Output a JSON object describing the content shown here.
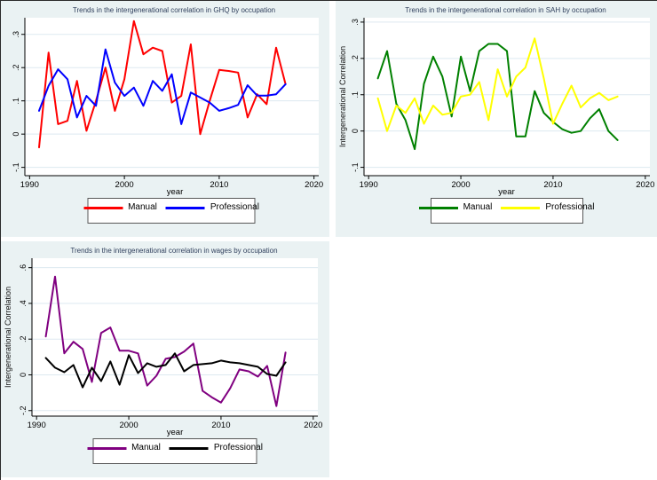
{
  "page": {
    "background": "#ffffff",
    "panel_background": "#eaf2f3",
    "gridline_color": "#dde9f0",
    "axis_color": "#000000",
    "title_color": "#2f3f5c"
  },
  "chart_data": [
    {
      "type": "line",
      "title": "Trends in the intergenerational correlation in GHQ by occupation",
      "xlabel": "year",
      "ylabel": "",
      "grid": true,
      "legend_position": "bottom",
      "xlim": [
        1989.5,
        2020.5
      ],
      "ylim": [
        -0.125,
        0.35
      ],
      "xticks": {
        "values": [
          1990,
          2000,
          2010,
          2020
        ],
        "labels": [
          "1990",
          "2000",
          "2010",
          "2020"
        ]
      },
      "yticks": {
        "values": [
          -0.1,
          0,
          0.1,
          0.2,
          0.3
        ],
        "labels": [
          "-.1",
          "0",
          ".1",
          ".2",
          ".3"
        ]
      },
      "x": [
        1991,
        1992,
        1993,
        1994,
        1995,
        1996,
        1997,
        1998,
        1999,
        2000,
        2001,
        2002,
        2003,
        2004,
        2005,
        2006,
        2007,
        2008,
        2009,
        2010,
        2011,
        2012,
        2013,
        2014,
        2015,
        2016,
        2017
      ],
      "series": [
        {
          "name": "Manual",
          "color": "#ff0000",
          "values": [
            -0.04,
            0.245,
            0.03,
            0.04,
            0.16,
            0.01,
            0.1,
            0.2,
            0.07,
            0.165,
            0.34,
            0.24,
            0.26,
            0.25,
            0.095,
            0.115,
            0.27,
            0.0,
            0.1,
            0.193,
            0.19,
            0.185,
            0.05,
            0.12,
            0.09,
            0.26,
            0.15
          ]
        },
        {
          "name": "Professional",
          "color": "#0000ff",
          "values": [
            0.07,
            0.145,
            0.195,
            0.165,
            0.05,
            0.115,
            0.085,
            0.255,
            0.155,
            0.115,
            0.14,
            0.085,
            0.16,
            0.13,
            0.18,
            0.03,
            0.125,
            0.11,
            0.095,
            0.07,
            0.078,
            0.088,
            0.147,
            0.116,
            0.116,
            0.12,
            0.15
          ]
        }
      ]
    },
    {
      "type": "line",
      "title": "Trends in the intergenerational correlation in SAH by occupation",
      "xlabel": "year",
      "ylabel": "Intergenerational Correlation",
      "grid": true,
      "legend_position": "bottom",
      "xlim": [
        1989.5,
        2020.5
      ],
      "ylim": [
        -0.123,
        0.312
      ],
      "xticks": {
        "values": [
          1990,
          2000,
          2010,
          2020
        ],
        "labels": [
          "1990",
          "2000",
          "2010",
          "2020"
        ]
      },
      "yticks": {
        "values": [
          -0.1,
          0,
          0.1,
          0.2,
          0.3
        ],
        "labels": [
          "-.1",
          "0",
          ".1",
          ".2",
          ".3"
        ]
      },
      "x": [
        1991,
        1992,
        1993,
        1994,
        1995,
        1996,
        1997,
        1998,
        1999,
        2000,
        2001,
        2002,
        2003,
        2004,
        2005,
        2006,
        2007,
        2008,
        2009,
        2010,
        2011,
        2012,
        2013,
        2014,
        2015,
        2016,
        2017
      ],
      "series": [
        {
          "name": "Manual",
          "color": "#008000",
          "values": [
            0.145,
            0.22,
            0.075,
            0.03,
            -0.05,
            0.13,
            0.205,
            0.15,
            0.04,
            0.205,
            0.11,
            0.22,
            0.24,
            0.24,
            0.22,
            -0.015,
            -0.015,
            0.11,
            0.05,
            0.025,
            0.005,
            -0.005,
            0.0,
            0.035,
            0.06,
            0.0,
            -0.025
          ]
        },
        {
          "name": "Professional",
          "color": "#ffff00",
          "values": [
            0.09,
            0.0,
            0.07,
            0.05,
            0.09,
            0.02,
            0.07,
            0.045,
            0.05,
            0.095,
            0.1,
            0.135,
            0.03,
            0.17,
            0.095,
            0.15,
            0.175,
            0.255,
            0.145,
            0.02,
            0.075,
            0.125,
            0.065,
            0.09,
            0.105,
            0.085,
            0.095
          ]
        }
      ]
    },
    {
      "type": "line",
      "title": "Trends in the intergenerational correlation in wages by occupation",
      "xlabel": "year",
      "ylabel": "Intergenerational Correlation",
      "grid": true,
      "legend_position": "bottom",
      "xlim": [
        1989.5,
        2020.5
      ],
      "ylim": [
        -0.231,
        0.653
      ],
      "xticks": {
        "values": [
          1990,
          2000,
          2010,
          2020
        ],
        "labels": [
          "1990",
          "2000",
          "2010",
          "2020"
        ]
      },
      "yticks": {
        "values": [
          -0.2,
          0,
          0.2,
          0.4,
          0.6
        ],
        "labels": [
          "-.2",
          "0",
          ".2",
          ".4",
          ".6"
        ]
      },
      "x": [
        1991,
        1992,
        1993,
        1994,
        1995,
        1996,
        1997,
        1998,
        1999,
        2000,
        2001,
        2002,
        2003,
        2004,
        2005,
        2006,
        2007,
        2008,
        2009,
        2010,
        2011,
        2012,
        2013,
        2014,
        2015,
        2016,
        2017
      ],
      "series": [
        {
          "name": "Manual",
          "color": "#800080",
          "values": [
            0.215,
            0.55,
            0.12,
            0.185,
            0.145,
            -0.04,
            0.235,
            0.265,
            0.135,
            0.135,
            0.12,
            -0.06,
            -0.005,
            0.09,
            0.1,
            0.13,
            0.175,
            -0.09,
            -0.125,
            -0.155,
            -0.075,
            0.03,
            0.02,
            -0.01,
            0.05,
            -0.175,
            0.125
          ]
        },
        {
          "name": "Professional",
          "color": "#000000",
          "values": [
            0.095,
            0.04,
            0.015,
            0.055,
            -0.07,
            0.04,
            -0.035,
            0.075,
            -0.055,
            0.11,
            0.01,
            0.065,
            0.045,
            0.055,
            0.12,
            0.02,
            0.055,
            0.06,
            0.065,
            0.08,
            0.07,
            0.065,
            0.055,
            0.045,
            0.005,
            -0.005,
            0.07
          ]
        }
      ]
    }
  ]
}
